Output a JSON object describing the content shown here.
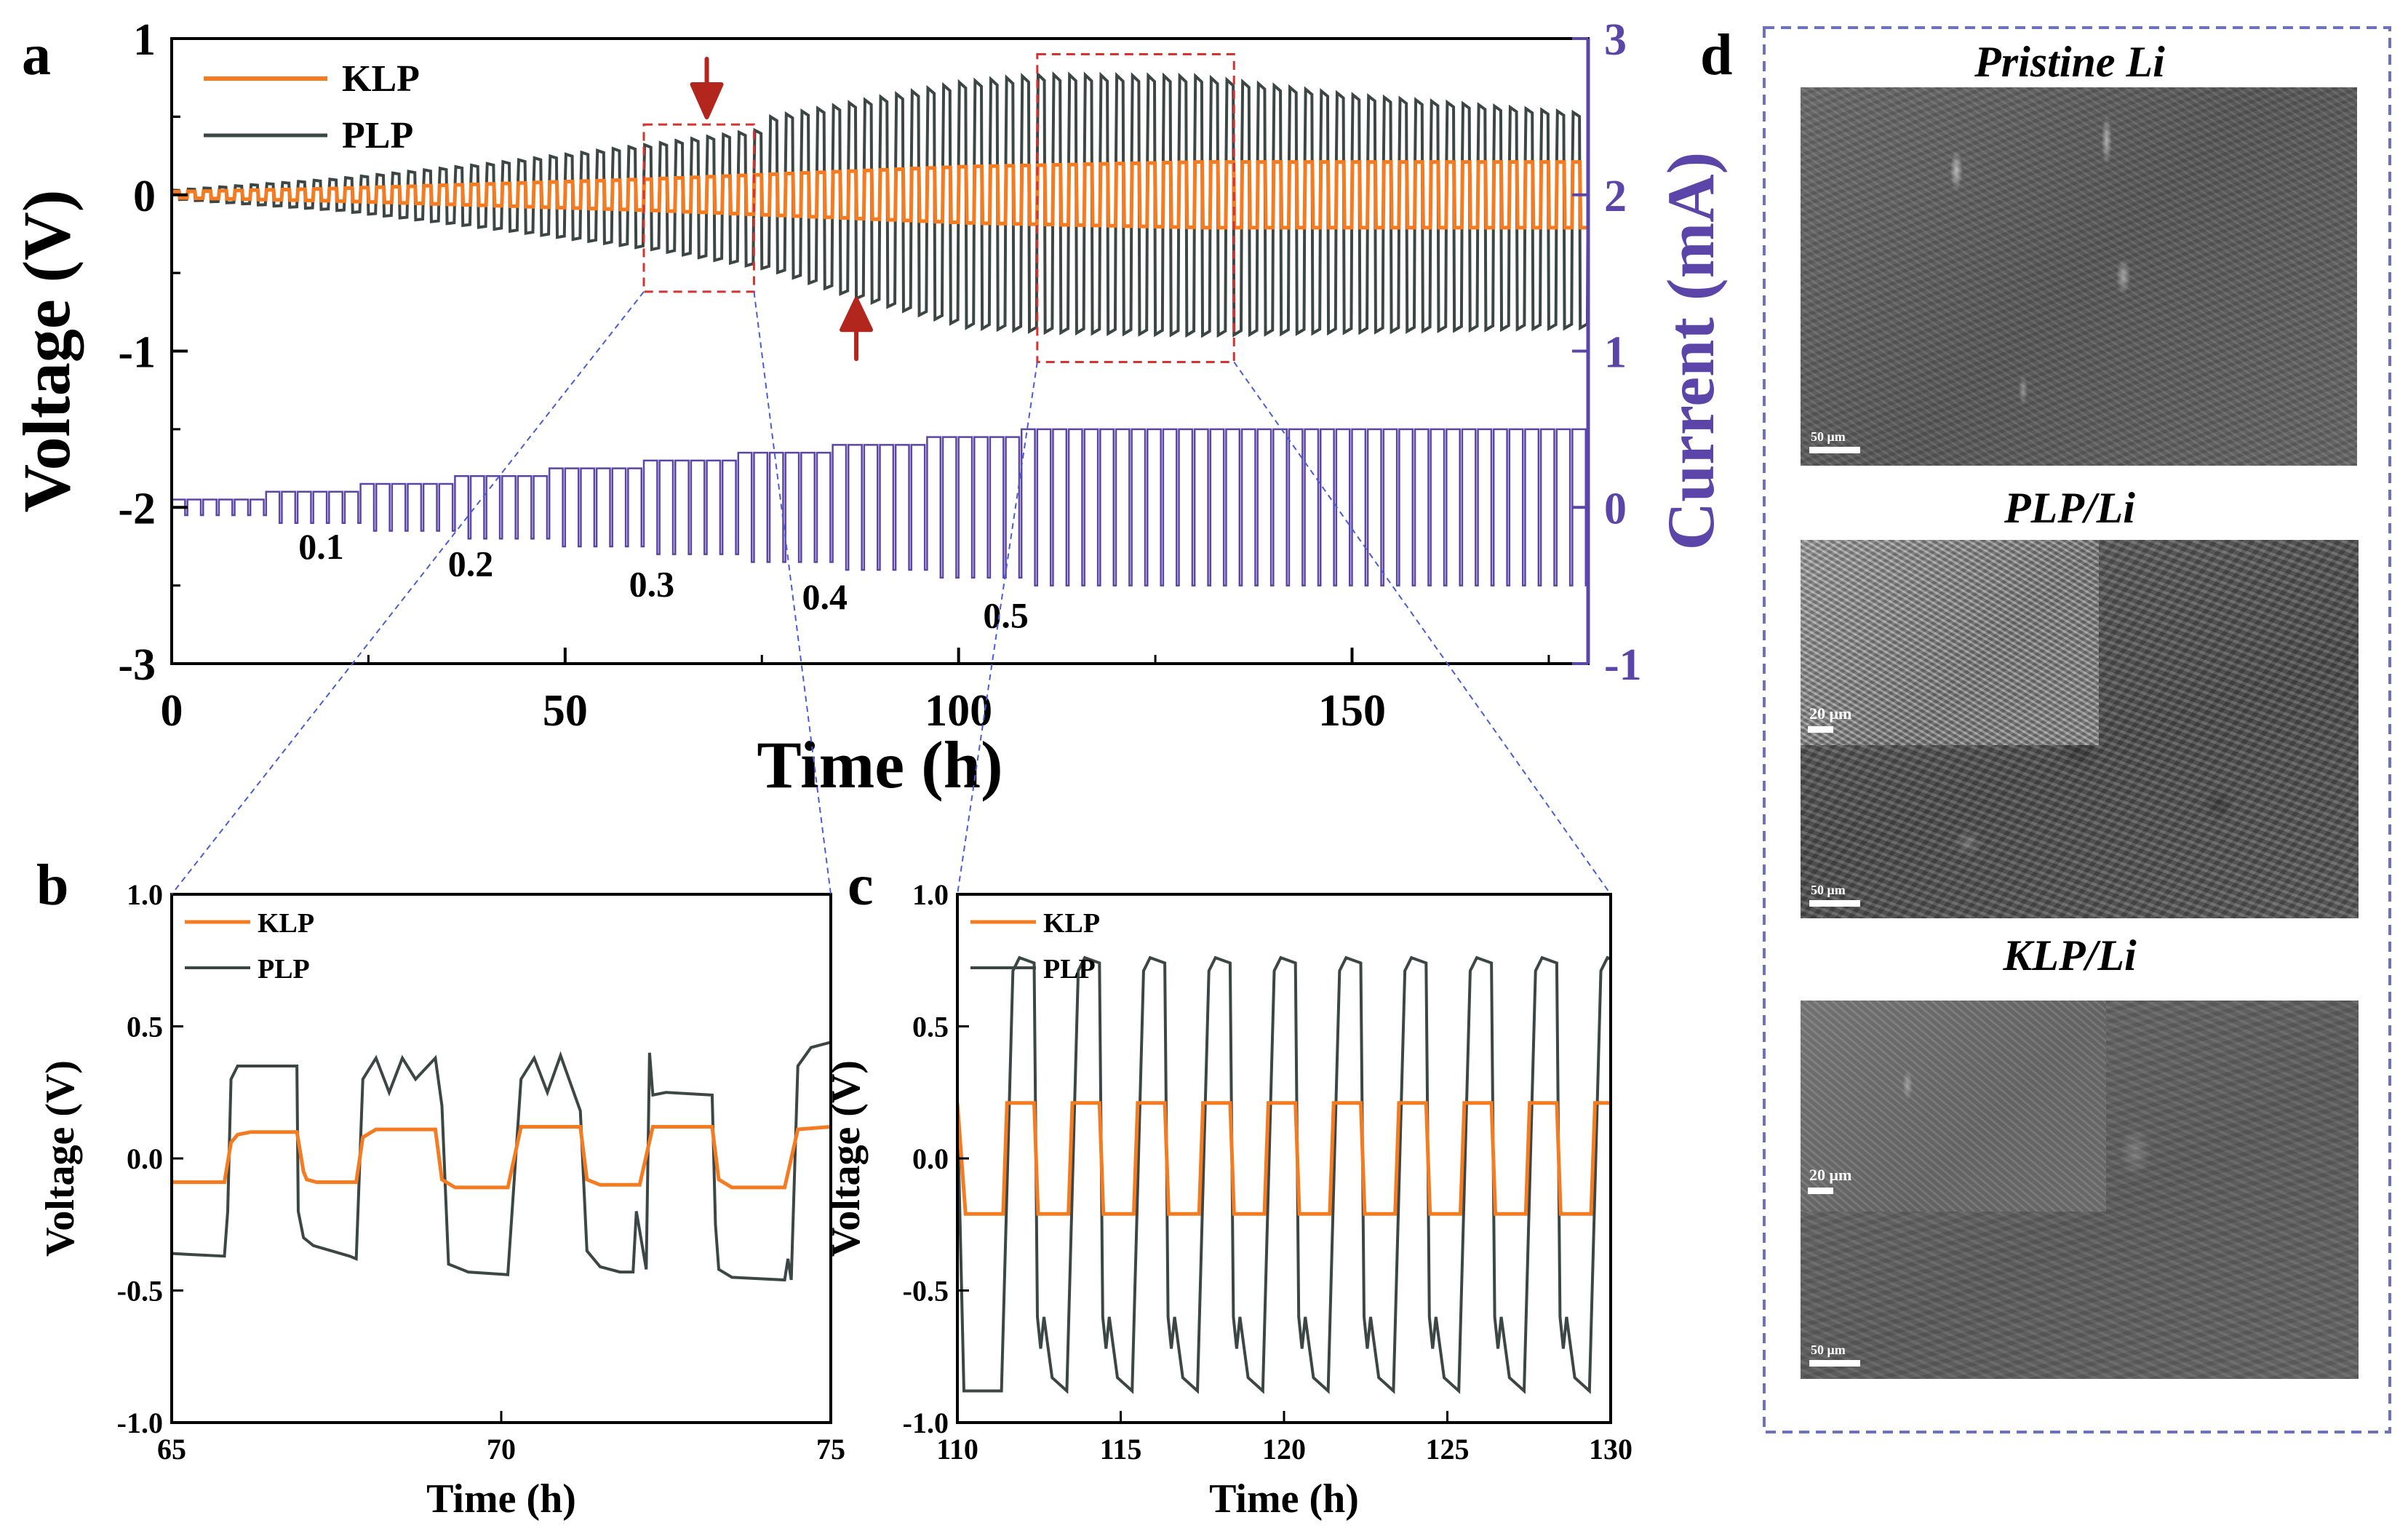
{
  "colors": {
    "klp": "#F47B20",
    "plp": "#3C4645",
    "current": "#5B45A8",
    "zoom_box": "#D9322E",
    "zoom_lines": "#4A5DD6",
    "panel_d_frame": "#6C72C0",
    "arrow": "#B3261E",
    "axis": "#000000"
  },
  "panel_labels": {
    "a": "a",
    "b": "b",
    "c": "c",
    "d": "d"
  },
  "rate_labels": [
    "0.1",
    "0.2",
    "0.3",
    "0.4",
    "0.5"
  ],
  "panel_d": {
    "titles": [
      "Pristine Li",
      "PLP/Li",
      "KLP/Li"
    ],
    "scale_labels": {
      "pristine": "50 μm",
      "plp_main": "50 μm",
      "plp_inset": "20 μm",
      "klp_main": "50 μm",
      "klp_inset": "20 μm"
    }
  },
  "chart_data": [
    {
      "id": "a",
      "type": "line",
      "xlabel": "Time (h)",
      "ylabel": "Voltage (V)",
      "y2label": "Current (mA)",
      "xlim": [
        0,
        180
      ],
      "ylim": [
        -3,
        1
      ],
      "y2lim": [
        -1,
        3
      ],
      "xticks": [
        "0",
        "50",
        "100",
        "150"
      ],
      "xtick_values": [
        0,
        50,
        100,
        150
      ],
      "yticks": [
        "-3",
        "-2",
        "-1",
        "0",
        "1"
      ],
      "ytick_values": [
        -3,
        -2,
        -1,
        0,
        1
      ],
      "y2ticks": [
        "-1",
        "0",
        "1",
        "2",
        "3"
      ],
      "y2tick_values": [
        -1,
        0,
        1,
        2,
        3
      ],
      "legend": [
        "KLP",
        "PLP"
      ],
      "legend_position": "top-left",
      "series": [
        {
          "name": "KLP",
          "axis": "left",
          "description": "square-wave voltage, 1 h plating / 1 h stripping",
          "amplitude_profile": {
            "t": [
              0,
              20,
              40,
              60,
              80,
              100,
              130,
              180
            ],
            "v": [
              0.02,
              0.04,
              0.07,
              0.1,
              0.14,
              0.18,
              0.21,
              0.21
            ]
          }
        },
        {
          "name": "PLP",
          "axis": "left",
          "description": "square-wave voltage, 1 h plating / 1 h stripping",
          "upper_profile": {
            "t": [
              0,
              20,
              40,
              60,
              75,
              76,
              85,
              100,
              110,
              130,
              150,
              180
            ],
            "v": [
              0.03,
              0.1,
              0.2,
              0.32,
              0.42,
              0.5,
              0.58,
              0.72,
              0.77,
              0.76,
              0.64,
              0.52
            ]
          },
          "lower_profile": {
            "t": [
              0,
              20,
              40,
              60,
              75,
              85,
              100,
              110,
              130,
              150,
              180
            ],
            "v": [
              -0.03,
              -0.1,
              -0.22,
              -0.35,
              -0.48,
              -0.65,
              -0.85,
              -0.88,
              -0.9,
              -0.88,
              -0.85
            ]
          }
        },
        {
          "name": "Current",
          "axis": "right",
          "description": "symmetric current steps ± rate",
          "steps": [
            {
              "t_start": 0,
              "t_end": 12,
              "amplitude": 0.05
            },
            {
              "t_start": 12,
              "t_end": 24,
              "amplitude": 0.1
            },
            {
              "t_start": 24,
              "t_end": 36,
              "amplitude": 0.15
            },
            {
              "t_start": 36,
              "t_end": 48,
              "amplitude": 0.2
            },
            {
              "t_start": 48,
              "t_end": 60,
              "amplitude": 0.25
            },
            {
              "t_start": 60,
              "t_end": 72,
              "amplitude": 0.3
            },
            {
              "t_start": 72,
              "t_end": 84,
              "amplitude": 0.35
            },
            {
              "t_start": 84,
              "t_end": 96,
              "amplitude": 0.4
            },
            {
              "t_start": 96,
              "t_end": 108,
              "amplitude": 0.45
            },
            {
              "t_start": 108,
              "t_end": 180,
              "amplitude": 0.5
            }
          ]
        }
      ],
      "rate_label_positions": [
        {
          "label": "0.1",
          "t": 19,
          "y2": -0.33
        },
        {
          "label": "0.2",
          "t": 38,
          "y2": -0.44
        },
        {
          "label": "0.3",
          "t": 61,
          "y2": -0.57
        },
        {
          "label": "0.4",
          "t": 83,
          "y2": -0.65
        },
        {
          "label": "0.5",
          "t": 106,
          "y2": -0.77
        }
      ],
      "zoom_boxes": [
        {
          "t": [
            60,
            74
          ],
          "v": [
            -0.62,
            0.45
          ],
          "panel": "b"
        },
        {
          "t": [
            110,
            135
          ],
          "v": [
            -1.07,
            0.9
          ],
          "panel": "c"
        }
      ]
    },
    {
      "id": "b",
      "type": "line",
      "xlabel": "Time (h)",
      "ylabel": "Voltage (V)",
      "xlim": [
        65,
        75
      ],
      "ylim": [
        -1.0,
        1.0
      ],
      "xticks": [
        "65",
        "70",
        "75"
      ],
      "xtick_values": [
        65,
        70,
        75
      ],
      "yticks": [
        "-1.0",
        "-0.5",
        "0.0",
        "0.5",
        "1.0"
      ],
      "ytick_values": [
        -1.0,
        -0.5,
        0.0,
        0.5,
        1.0
      ],
      "legend": [
        "KLP",
        "PLP"
      ],
      "legend_position": "top-left",
      "series": [
        {
          "name": "KLP",
          "x": [
            65,
            65.8,
            65.9,
            66.0,
            66.2,
            66.9,
            67.0,
            67.05,
            67.2,
            67.8,
            67.9,
            68.1,
            69.0,
            69.1,
            69.3,
            70.1,
            70.3,
            71.2,
            71.3,
            71.5,
            72.1,
            72.3,
            73.2,
            73.3,
            73.5,
            74.3,
            74.5,
            75.0
          ],
          "y": [
            -0.09,
            -0.09,
            0.06,
            0.09,
            0.1,
            0.1,
            -0.05,
            -0.08,
            -0.09,
            -0.09,
            0.08,
            0.11,
            0.11,
            -0.08,
            -0.11,
            -0.11,
            0.12,
            0.12,
            -0.08,
            -0.1,
            -0.1,
            0.12,
            0.12,
            -0.08,
            -0.11,
            -0.11,
            0.11,
            0.12
          ]
        },
        {
          "name": "PLP",
          "x": [
            65,
            65.8,
            65.85,
            65.9,
            66.0,
            66.9,
            66.92,
            67.0,
            67.15,
            67.7,
            67.8,
            67.9,
            68.1,
            68.3,
            68.5,
            68.7,
            69.0,
            69.1,
            69.2,
            69.5,
            70.1,
            70.3,
            70.5,
            70.7,
            70.9,
            71.1,
            71.2,
            71.3,
            71.5,
            71.8,
            72.0,
            72.05,
            72.2,
            72.25,
            72.3,
            72.5,
            73.2,
            73.25,
            73.3,
            73.5,
            74.3,
            74.35,
            74.4,
            74.5,
            74.7,
            75.0
          ],
          "y": [
            -0.36,
            -0.37,
            -0.2,
            0.3,
            0.35,
            0.35,
            -0.2,
            -0.3,
            -0.33,
            -0.37,
            -0.38,
            0.3,
            0.38,
            0.25,
            0.38,
            0.3,
            0.38,
            0.2,
            -0.4,
            -0.43,
            -0.44,
            0.3,
            0.38,
            0.25,
            0.39,
            0.25,
            0.18,
            -0.35,
            -0.41,
            -0.43,
            -0.43,
            -0.2,
            -0.42,
            0.4,
            0.24,
            0.25,
            0.24,
            -0.25,
            -0.42,
            -0.45,
            -0.46,
            -0.38,
            -0.46,
            0.35,
            0.42,
            0.44
          ]
        }
      ]
    },
    {
      "id": "c",
      "type": "line",
      "xlabel": "Time (h)",
      "ylabel": "Voltage (V)",
      "xlim": [
        110,
        130
      ],
      "ylim": [
        -1.0,
        1.0
      ],
      "xticks": [
        "110",
        "115",
        "120",
        "125",
        "130"
      ],
      "xtick_values": [
        110,
        115,
        120,
        125,
        130
      ],
      "yticks": [
        "-1.0",
        "-0.5",
        "0.0",
        "0.5",
        "1.0"
      ],
      "ytick_values": [
        -1.0,
        -0.5,
        0.0,
        0.5,
        1.0
      ],
      "legend": [
        "KLP",
        "PLP"
      ],
      "legend_position": "top-left",
      "cycle_period_h": 2.0,
      "first_rise_h": 111.4,
      "series": [
        {
          "name": "KLP",
          "plateau_high": 0.21,
          "plateau_low": -0.21
        },
        {
          "name": "PLP",
          "plateau_high": 0.76,
          "plateau_low": -0.88,
          "mid_low_dips": -0.6
        }
      ]
    }
  ]
}
